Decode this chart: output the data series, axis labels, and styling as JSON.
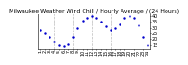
{
  "title": "Milwaukee Weather Wind Chill / Hourly Average / (24 Hours)",
  "hours": [
    1,
    2,
    3,
    4,
    5,
    6,
    7,
    8,
    9,
    10,
    11,
    12,
    13,
    14,
    15,
    16,
    17,
    18,
    19,
    20,
    21,
    22,
    23,
    24
  ],
  "wind_chill": [
    28,
    25,
    22,
    18,
    15,
    14,
    16,
    22,
    30,
    36,
    38,
    40,
    38,
    35,
    31,
    28,
    30,
    33,
    38,
    40,
    38,
    32,
    22,
    15
  ],
  "dot_color": "#0000cc",
  "bg_color": "#ffffff",
  "grid_color": "#bbbbbb",
  "ylim": [
    12,
    42
  ],
  "ytick_values": [
    15,
    20,
    25,
    30,
    35,
    40
  ],
  "ytick_labels": [
    "15",
    "20",
    "25",
    "30",
    "35",
    "40"
  ],
  "title_fontsize": 4.5,
  "tick_fontsize": 3.5,
  "vline_positions": [
    4,
    8,
    12,
    16,
    20,
    24
  ],
  "markersize": 1.5
}
